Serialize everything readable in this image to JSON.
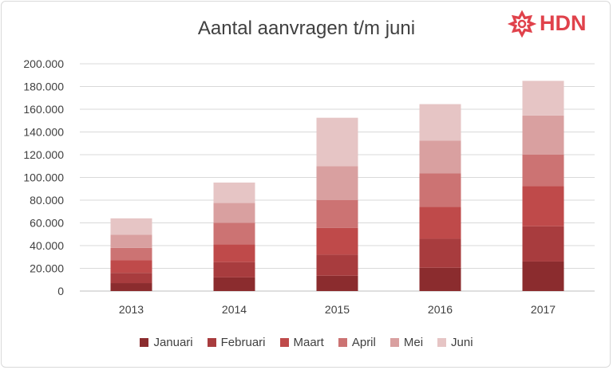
{
  "brand": {
    "name": "HDN",
    "color": "#e0424b"
  },
  "chart_data": {
    "type": "bar",
    "stacked": true,
    "title": "Aantal aanvragen t/m juni",
    "xlabel": "",
    "ylabel": "",
    "categories": [
      "2013",
      "2014",
      "2015",
      "2016",
      "2017"
    ],
    "ylim": [
      0,
      200000
    ],
    "yticks": [
      "0",
      "20.000",
      "40.000",
      "60.000",
      "80.000",
      "100.000",
      "120.000",
      "140.000",
      "160.000",
      "180.000",
      "200.000"
    ],
    "grid": true,
    "legend_position": "bottom",
    "series": [
      {
        "name": "Januari",
        "color": "#8b2c2e",
        "values": [
          7000,
          12000,
          13500,
          20500,
          26000
        ]
      },
      {
        "name": "Februari",
        "color": "#a83c3e",
        "values": [
          9000,
          13500,
          18500,
          25500,
          31000
        ]
      },
      {
        "name": "Maart",
        "color": "#bf4a4a",
        "values": [
          11000,
          15500,
          23500,
          28000,
          35500
        ]
      },
      {
        "name": "April",
        "color": "#cc7373",
        "values": [
          11000,
          19000,
          24500,
          29500,
          27500
        ]
      },
      {
        "name": "Mei",
        "color": "#d9a0a0",
        "values": [
          11500,
          17500,
          30000,
          29000,
          34500
        ]
      },
      {
        "name": "Juni",
        "color": "#e6c5c5",
        "values": [
          14500,
          18000,
          42500,
          32000,
          30500
        ]
      }
    ]
  }
}
